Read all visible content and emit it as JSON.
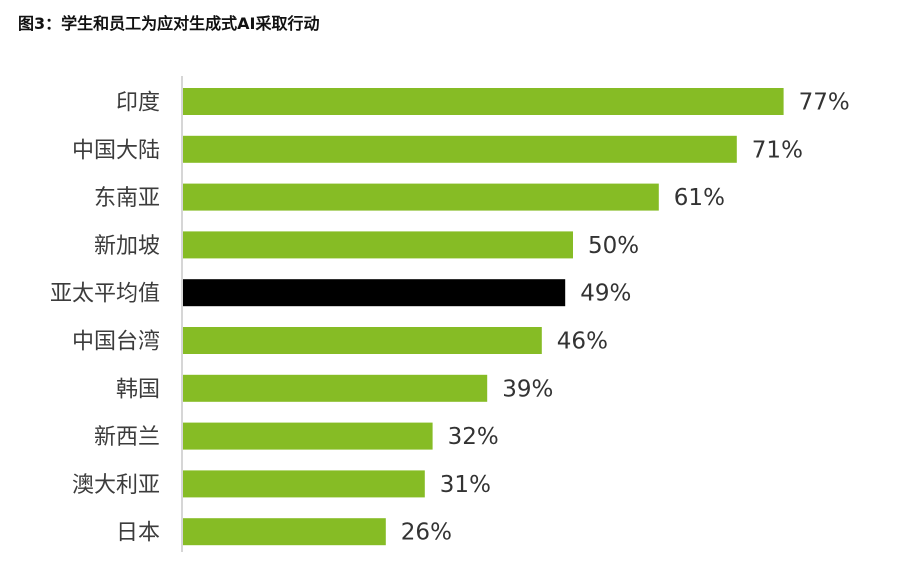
{
  "figure_title": "图3：学生和员工为应对生成式AI采取行动",
  "colors": {
    "bar": "#86bc25",
    "highlight": "#000000",
    "axis": "#c8c8c8"
  },
  "chart_data": {
    "type": "bar",
    "orientation": "horizontal",
    "categories": [
      "印度",
      "中国大陆",
      "东南亚",
      "新加坡",
      "亚太平均值",
      "中国台湾",
      "韩国",
      "新西兰",
      "澳大利亚",
      "日本"
    ],
    "values": [
      77,
      71,
      61,
      50,
      49,
      46,
      39,
      32,
      31,
      26
    ],
    "value_labels": [
      "77%",
      "71%",
      "61%",
      "50%",
      "49%",
      "46%",
      "39%",
      "32%",
      "31%",
      "26%"
    ],
    "highlight_index": 4,
    "xlim": [
      0,
      100
    ],
    "title": "",
    "xlabel": "",
    "ylabel": "",
    "grid": false,
    "legend": "none"
  }
}
